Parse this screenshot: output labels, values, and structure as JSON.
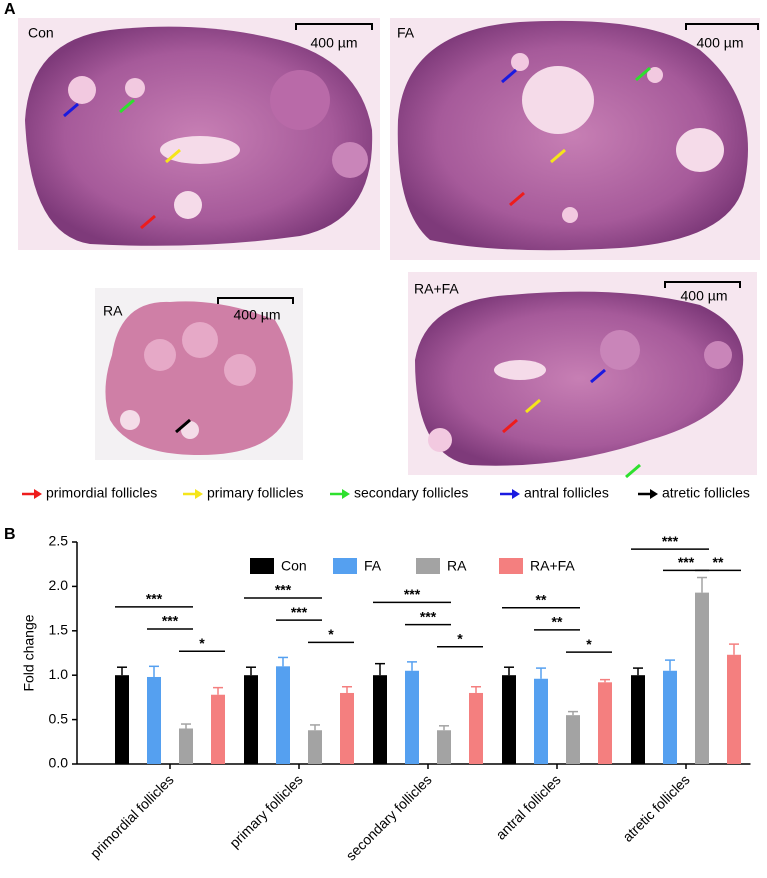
{
  "panel_a": {
    "label": "A",
    "images": [
      {
        "label": "Con",
        "scale": "400 µm"
      },
      {
        "label": "FA",
        "scale": "400 µm"
      },
      {
        "label": "RA",
        "scale": "400 µm"
      },
      {
        "label": "RA+FA",
        "scale": "400 µm"
      }
    ],
    "legend": [
      {
        "label": "primordial follicles",
        "color": "#ee1c1c"
      },
      {
        "label": "primary follicles",
        "color": "#f5e51a"
      },
      {
        "label": "secondary follicles",
        "color": "#2ee02e"
      },
      {
        "label": "antral follicles",
        "color": "#1a1ae0"
      },
      {
        "label": "atretic follicles",
        "color": "#000000"
      }
    ]
  },
  "panel_b": {
    "label": "B"
  },
  "chart_data": {
    "type": "bar",
    "ylabel": "Fold change",
    "categories": [
      "primordial follicles",
      "primary follicles",
      "secondary follicles",
      "antral follicles",
      "atretic follicles"
    ],
    "series": [
      {
        "name": "Con",
        "color": "#000000",
        "values": [
          1.0,
          1.0,
          1.0,
          1.0,
          1.0
        ],
        "errors": [
          0.09,
          0.09,
          0.13,
          0.09,
          0.08
        ]
      },
      {
        "name": "FA",
        "color": "#55a0f0",
        "values": [
          0.98,
          1.1,
          1.05,
          0.96,
          1.05
        ],
        "errors": [
          0.12,
          0.1,
          0.1,
          0.12,
          0.12
        ]
      },
      {
        "name": "RA",
        "color": "#a3a3a3",
        "values": [
          0.4,
          0.38,
          0.38,
          0.55,
          1.93
        ],
        "errors": [
          0.05,
          0.06,
          0.05,
          0.04,
          0.17
        ]
      },
      {
        "name": "RA+FA",
        "color": "#f47f7f",
        "values": [
          0.78,
          0.8,
          0.8,
          0.92,
          1.23
        ],
        "errors": [
          0.08,
          0.07,
          0.07,
          0.03,
          0.12
        ]
      }
    ],
    "ylim": [
      0,
      2.5
    ],
    "yticks": [
      {
        "value": 0,
        "label": "0.0"
      },
      0.5,
      {
        "value": 1,
        "label": "1.0"
      },
      1.5,
      {
        "value": 2,
        "label": "2.0"
      },
      2.5
    ],
    "legend": "top",
    "significance": [
      [
        "***",
        "***",
        "*"
      ],
      [
        "***",
        "***",
        "*"
      ],
      [
        "***",
        "***",
        "*"
      ],
      [
        "**",
        "**",
        "*"
      ],
      [
        "***",
        "***",
        "**"
      ]
    ]
  }
}
